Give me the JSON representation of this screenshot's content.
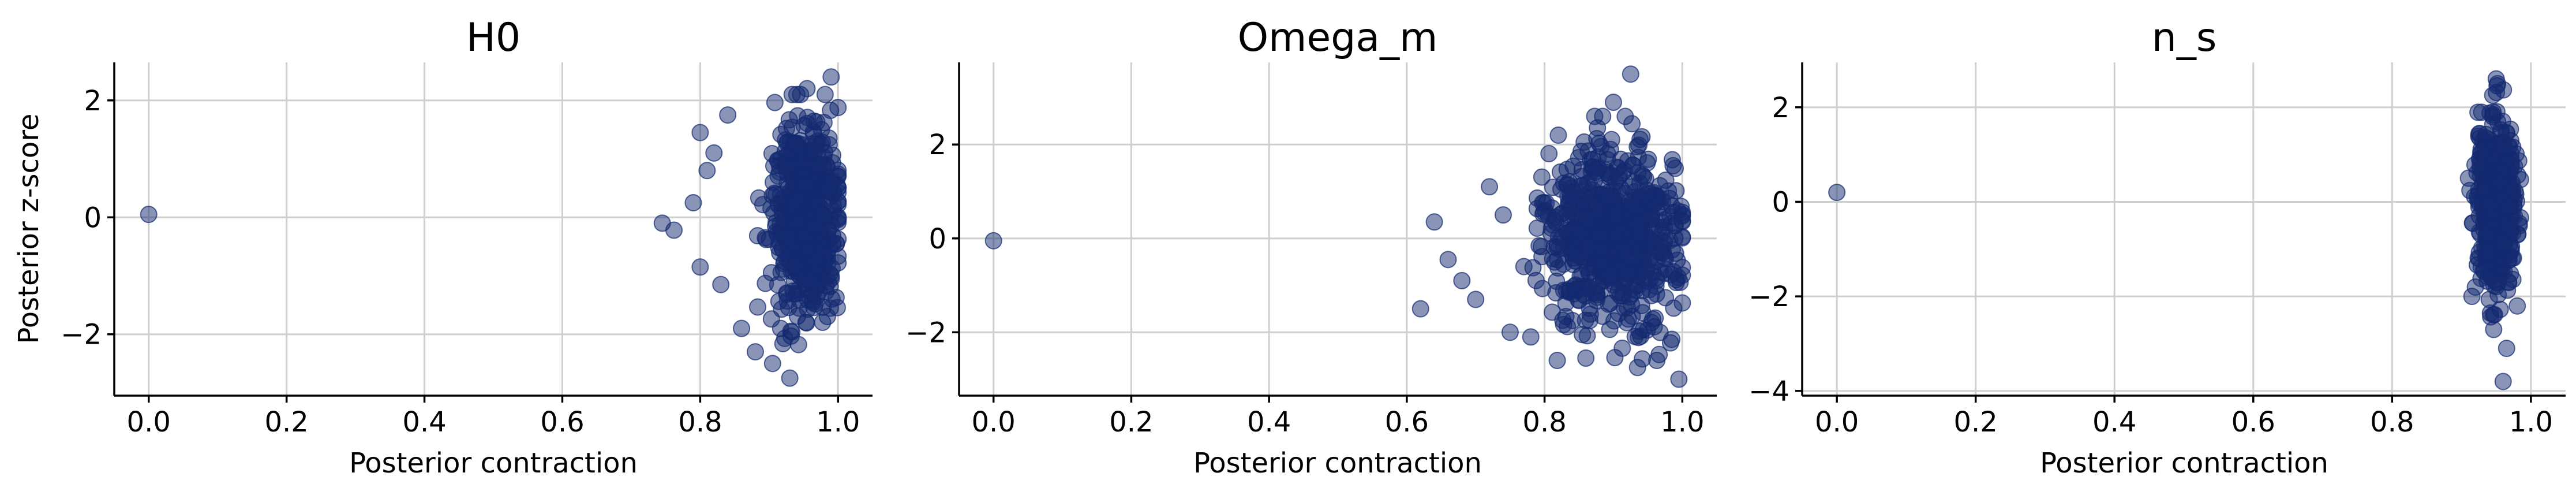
{
  "chart_data": [
    {
      "type": "scatter",
      "title": "H0",
      "xlabel": "Posterior contraction",
      "ylabel": "Posterior z-score",
      "xlim": [
        -0.05,
        1.05
      ],
      "ylim": [
        -3.05,
        2.65
      ],
      "xticks": [
        0.0,
        0.2,
        0.4,
        0.6,
        0.8,
        1.0
      ],
      "xtick_labels": [
        "0.0",
        "0.2",
        "0.4",
        "0.6",
        "0.8",
        "1.0"
      ],
      "yticks": [
        -2,
        0,
        2
      ],
      "ytick_labels": [
        "−2",
        "0",
        "2"
      ],
      "grid": true,
      "color": "#132a70",
      "outliers": [
        {
          "x": 0.0,
          "y": 0.05
        },
        {
          "x": 0.745,
          "y": -0.1
        },
        {
          "x": 0.762,
          "y": -0.22
        },
        {
          "x": 0.8,
          "y": 1.45
        },
        {
          "x": 0.82,
          "y": 1.1
        },
        {
          "x": 0.84,
          "y": 1.75
        },
        {
          "x": 0.8,
          "y": -0.85
        },
        {
          "x": 0.83,
          "y": -1.15
        },
        {
          "x": 0.86,
          "y": -1.9
        },
        {
          "x": 0.88,
          "y": -2.3
        },
        {
          "x": 0.905,
          "y": -2.5
        },
        {
          "x": 0.93,
          "y": -2.75
        },
        {
          "x": 0.955,
          "y": 2.2
        },
        {
          "x": 0.99,
          "y": 2.4
        },
        {
          "x": 0.79,
          "y": 0.25
        },
        {
          "x": 0.81,
          "y": 0.8
        }
      ],
      "cluster": {
        "x_min": 0.86,
        "x_max": 1.0,
        "x_peak": 0.95,
        "y_sd": 0.85,
        "y_min": -2.8,
        "y_max": 2.1,
        "count": 520
      }
    },
    {
      "type": "scatter",
      "title": "Omega_m",
      "xlabel": "Posterior contraction",
      "ylabel": "",
      "xlim": [
        -0.05,
        1.05
      ],
      "ylim": [
        -3.35,
        3.75
      ],
      "xticks": [
        0.0,
        0.2,
        0.4,
        0.6,
        0.8,
        1.0
      ],
      "xtick_labels": [
        "0.0",
        "0.2",
        "0.4",
        "0.6",
        "0.8",
        "1.0"
      ],
      "yticks": [
        -2,
        0,
        2
      ],
      "ytick_labels": [
        "−2",
        "0",
        "2"
      ],
      "grid": true,
      "color": "#132a70",
      "outliers": [
        {
          "x": 0.0,
          "y": -0.05
        },
        {
          "x": 0.62,
          "y": -1.5
        },
        {
          "x": 0.64,
          "y": 0.35
        },
        {
          "x": 0.66,
          "y": -0.45
        },
        {
          "x": 0.68,
          "y": -0.9
        },
        {
          "x": 0.7,
          "y": -1.3
        },
        {
          "x": 0.72,
          "y": 1.1
        },
        {
          "x": 0.75,
          "y": -2.0
        },
        {
          "x": 0.78,
          "y": -2.1
        },
        {
          "x": 0.82,
          "y": 2.2
        },
        {
          "x": 0.86,
          "y": -2.55
        },
        {
          "x": 0.9,
          "y": 2.9
        },
        {
          "x": 0.925,
          "y": 3.5
        },
        {
          "x": 0.935,
          "y": -2.75
        },
        {
          "x": 0.995,
          "y": -3.0
        },
        {
          "x": 0.74,
          "y": 0.5
        },
        {
          "x": 0.77,
          "y": -0.6
        }
      ],
      "cluster": {
        "x_min": 0.74,
        "x_max": 1.0,
        "x_peak": 0.9,
        "y_sd": 0.9,
        "y_min": -2.6,
        "y_max": 2.6,
        "count": 680
      }
    },
    {
      "type": "scatter",
      "title": "n_s",
      "xlabel": "Posterior contraction",
      "ylabel": "",
      "xlim": [
        -0.05,
        1.05
      ],
      "ylim": [
        -4.1,
        2.95
      ],
      "xticks": [
        0.0,
        0.2,
        0.4,
        0.6,
        0.8,
        1.0
      ],
      "xtick_labels": [
        "0.0",
        "0.2",
        "0.4",
        "0.6",
        "0.8",
        "1.0"
      ],
      "yticks": [
        -4,
        -2,
        0,
        2
      ],
      "ytick_labels": [
        "−4",
        "−2",
        "0",
        "2"
      ],
      "grid": true,
      "color": "#132a70",
      "outliers": [
        {
          "x": 0.0,
          "y": 0.2
        },
        {
          "x": 0.96,
          "y": -3.8
        },
        {
          "x": 0.95,
          "y": 2.6
        },
        {
          "x": 0.91,
          "y": 0.5
        },
        {
          "x": 0.915,
          "y": -2.0
        },
        {
          "x": 0.965,
          "y": -3.1
        }
      ],
      "cluster": {
        "x_min": 0.91,
        "x_max": 0.985,
        "x_peak": 0.95,
        "y_sd": 0.9,
        "y_min": -2.7,
        "y_max": 2.5,
        "count": 520
      }
    }
  ]
}
